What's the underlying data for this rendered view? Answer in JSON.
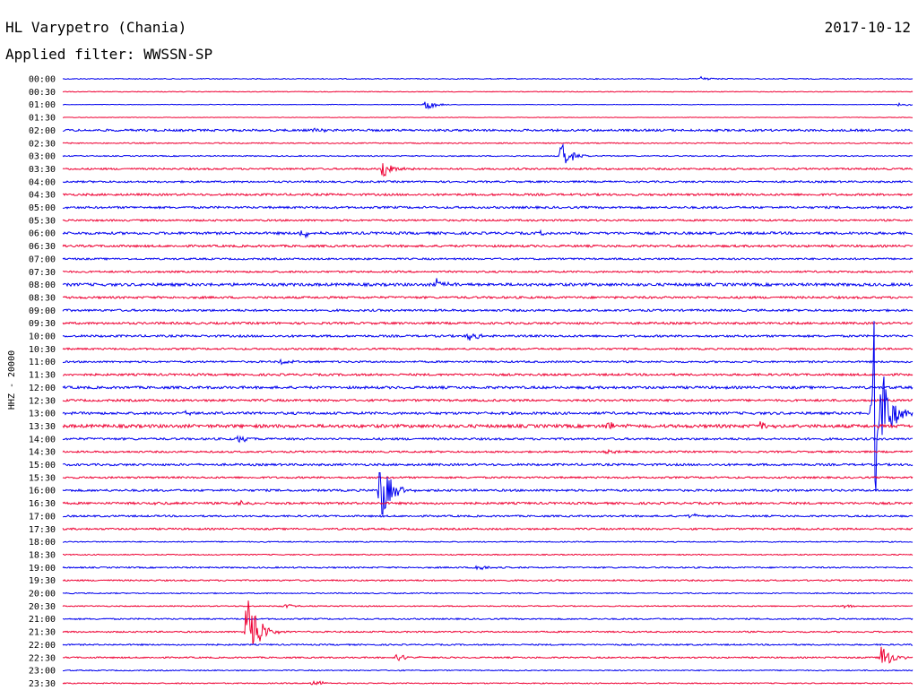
{
  "station": "HL Varypetro (Chania)",
  "date": "2017-10-12",
  "filter_label": "Applied filter: WWSSN-SP",
  "channel_label": "HHZ - 20000",
  "colors": {
    "even_trace": "#0000ee",
    "odd_trace": "#ee0033"
  },
  "chart_data": {
    "type": "line",
    "title": "HL Varypetro (Chania)",
    "subtitle": "Applied filter: WWSSN-SP",
    "ylabel": "HHZ - 20000",
    "xlabel": "",
    "grid": false,
    "ticks": [
      "00:00",
      "00:30",
      "01:00",
      "01:30",
      "02:00",
      "02:30",
      "03:00",
      "03:30",
      "04:00",
      "04:30",
      "05:00",
      "05:30",
      "06:00",
      "06:30",
      "07:00",
      "07:30",
      "08:00",
      "08:30",
      "09:00",
      "09:30",
      "10:00",
      "10:30",
      "11:00",
      "11:30",
      "12:00",
      "12:30",
      "13:00",
      "13:30",
      "14:00",
      "14:30",
      "15:00",
      "15:30",
      "16:00",
      "16:30",
      "17:00",
      "17:30",
      "18:00",
      "18:30",
      "19:00",
      "19:30",
      "20:00",
      "20:30",
      "21:00",
      "21:30",
      "22:00",
      "22:30",
      "23:00",
      "23:30"
    ],
    "trace_window_minutes": 30,
    "noise_amplitude": [
      0.5,
      0.4,
      0.3,
      0.3,
      1.2,
      0.6,
      0.6,
      1.0,
      1.0,
      1.2,
      1.2,
      1.0,
      1.4,
      1.2,
      1.0,
      1.0,
      1.6,
      1.2,
      1.2,
      1.2,
      1.2,
      1.0,
      1.0,
      1.2,
      1.4,
      1.2,
      1.4,
      1.8,
      1.2,
      1.0,
      1.2,
      1.0,
      1.2,
      1.2,
      1.0,
      1.0,
      0.6,
      0.6,
      0.8,
      0.8,
      0.6,
      0.6,
      0.8,
      0.8,
      0.8,
      0.8,
      0.6,
      0.6
    ],
    "events": [
      {
        "trace": 0,
        "minute": 22.5,
        "amplitude": 3
      },
      {
        "trace": 2,
        "minute": 12.8,
        "amplitude": 7
      },
      {
        "trace": 2,
        "minute": 29.5,
        "amplitude": 3
      },
      {
        "trace": 4,
        "minute": 8.8,
        "amplitude": 3
      },
      {
        "trace": 6,
        "minute": 17.6,
        "amplitude": 16
      },
      {
        "trace": 7,
        "minute": 11.3,
        "amplitude": 14
      },
      {
        "trace": 12,
        "minute": 8.4,
        "amplitude": 6
      },
      {
        "trace": 12,
        "minute": 16.9,
        "amplitude": 3
      },
      {
        "trace": 16,
        "minute": 13.2,
        "amplitude": 6
      },
      {
        "trace": 20,
        "minute": 14.3,
        "amplitude": 6
      },
      {
        "trace": 22,
        "minute": 7.7,
        "amplitude": 3
      },
      {
        "trace": 26,
        "minute": 28.6,
        "amplitude": 145
      },
      {
        "trace": 26,
        "minute": 4.2,
        "amplitude": 3
      },
      {
        "trace": 27,
        "minute": 24.6,
        "amplitude": 6
      },
      {
        "trace": 27,
        "minute": 19.2,
        "amplitude": 5
      },
      {
        "trace": 28,
        "minute": 6.2,
        "amplitude": 5
      },
      {
        "trace": 29,
        "minute": 19.1,
        "amplitude": 3
      },
      {
        "trace": 32,
        "minute": 11.2,
        "amplitude": 40
      },
      {
        "trace": 33,
        "minute": 6.2,
        "amplitude": 3
      },
      {
        "trace": 33,
        "minute": 3.3,
        "amplitude": 2
      },
      {
        "trace": 34,
        "minute": 22.1,
        "amplitude": 3
      },
      {
        "trace": 38,
        "minute": 14.6,
        "amplitude": 4
      },
      {
        "trace": 41,
        "minute": 7.8,
        "amplitude": 3
      },
      {
        "trace": 41,
        "minute": 27.6,
        "amplitude": 3
      },
      {
        "trace": 43,
        "minute": 6.5,
        "amplitude": 58
      },
      {
        "trace": 45,
        "minute": 11.8,
        "amplitude": 5
      },
      {
        "trace": 45,
        "minute": 28.9,
        "amplitude": 16
      },
      {
        "trace": 47,
        "minute": 8.8,
        "amplitude": 4
      }
    ]
  }
}
